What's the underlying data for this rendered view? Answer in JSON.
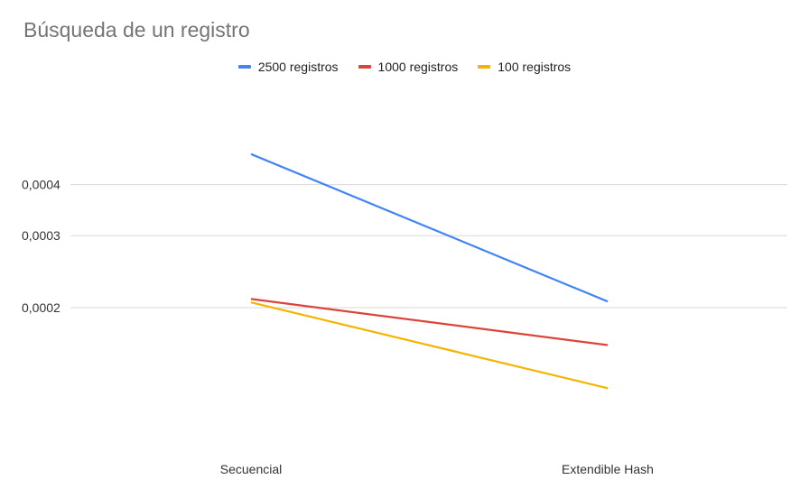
{
  "chart_data": {
    "type": "line",
    "title": "Búsqueda de un registro",
    "categories": [
      "Secuencial",
      "Extendible Hash"
    ],
    "series": [
      {
        "name": "2500 registros",
        "color": "#4285F4",
        "values": [
          0.000475,
          0.000207
        ]
      },
      {
        "name": "1000 registros",
        "color": "#DB4437",
        "values": [
          0.00021,
          0.000162
        ]
      },
      {
        "name": "100 registros",
        "color": "#F4B400",
        "values": [
          0.000206,
          0.000127
        ]
      }
    ],
    "y_ticks": [
      {
        "value": 0.0002,
        "label": "0,0002"
      },
      {
        "value": 0.0003,
        "label": "0,0003"
      },
      {
        "value": 0.0004,
        "label": "0,0004"
      }
    ],
    "yscale": "log",
    "grid": true,
    "legend_position": "top-center",
    "xlabel": "",
    "ylabel": ""
  }
}
